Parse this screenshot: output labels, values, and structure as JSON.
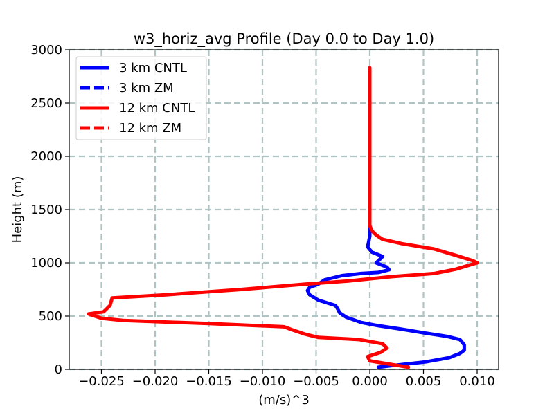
{
  "chart_data": {
    "type": "line",
    "title": "w3_horiz_avg Profile (Day 0.0 to Day 1.0)",
    "xlabel": "(m/s)^3",
    "ylabel": "Height (m)",
    "xlim": [
      -0.028,
      0.012
    ],
    "ylim": [
      0,
      3000
    ],
    "xticks": [
      -0.025,
      -0.02,
      -0.015,
      -0.01,
      -0.005,
      0.0,
      0.005,
      0.01
    ],
    "xtick_labels": [
      "−0.025",
      "−0.020",
      "−0.015",
      "−0.010",
      "−0.005",
      "0.000",
      "0.005",
      "0.010"
    ],
    "yticks": [
      0,
      500,
      1000,
      1500,
      2000,
      2500,
      3000
    ],
    "ytick_labels": [
      "0",
      "500",
      "1000",
      "1500",
      "2000",
      "2500",
      "3000"
    ],
    "grid": true,
    "legend_position": "top-left",
    "series": [
      {
        "name": "3 km CNTL",
        "color": "#0000ff",
        "linestyle": "solid",
        "x": [
          0.0008,
          0.0025,
          0.0052,
          0.0074,
          0.0084,
          0.0088,
          0.0088,
          0.0084,
          0.0072,
          0.0052,
          0.0028,
          0.0008,
          -0.0008,
          -0.0022,
          -0.0028,
          -0.003,
          -0.0032,
          -0.0048,
          -0.0056,
          -0.0058,
          -0.0056,
          -0.0048,
          -0.0042,
          -0.0026,
          -0.0008,
          0.0008,
          0.0018,
          0.0016,
          0.0006,
          0.0012,
          0.0002,
          -0.0002,
          -0.0001,
          0.0,
          0.0,
          0.0,
          0.0,
          0.0,
          0.0
        ],
        "y": [
          20,
          40,
          70,
          110,
          150,
          180,
          230,
          280,
          310,
          340,
          380,
          410,
          440,
          490,
          530,
          570,
          600,
          650,
          700,
          740,
          770,
          800,
          840,
          880,
          900,
          910,
          935,
          960,
          1000,
          1060,
          1100,
          1150,
          1200,
          1250,
          1350,
          1500,
          2000,
          2500,
          2830
        ]
      },
      {
        "name": "3 km ZM",
        "color": "#0000ff",
        "linestyle": "dashed",
        "x": [],
        "y": []
      },
      {
        "name": "12 km CNTL",
        "color": "#ff0000",
        "linestyle": "solid",
        "x": [
          0.0036,
          0.0018,
          0.0,
          -0.0002,
          0.001,
          0.0016,
          0.0012,
          -0.001,
          -0.0048,
          -0.006,
          -0.0072,
          -0.008,
          -0.015,
          -0.023,
          -0.025,
          -0.0262,
          -0.0248,
          -0.0242,
          -0.024,
          -0.019,
          -0.012,
          -0.006,
          -0.002,
          0.002,
          0.006,
          0.008,
          0.01,
          0.0096,
          0.008,
          0.006,
          0.003,
          0.0012,
          0.0006,
          0.0002,
          0.0,
          0.0,
          0.0,
          0.0,
          0.0
        ],
        "y": [
          20,
          50,
          80,
          120,
          160,
          200,
          240,
          280,
          300,
          330,
          370,
          400,
          430,
          460,
          480,
          520,
          540,
          600,
          670,
          700,
          750,
          800,
          830,
          870,
          900,
          940,
          1000,
          1020,
          1070,
          1130,
          1180,
          1220,
          1260,
          1300,
          1350,
          1500,
          2000,
          2500,
          2830
        ]
      },
      {
        "name": "12 km ZM",
        "color": "#ff0000",
        "linestyle": "dashed",
        "x": [],
        "y": []
      }
    ]
  }
}
